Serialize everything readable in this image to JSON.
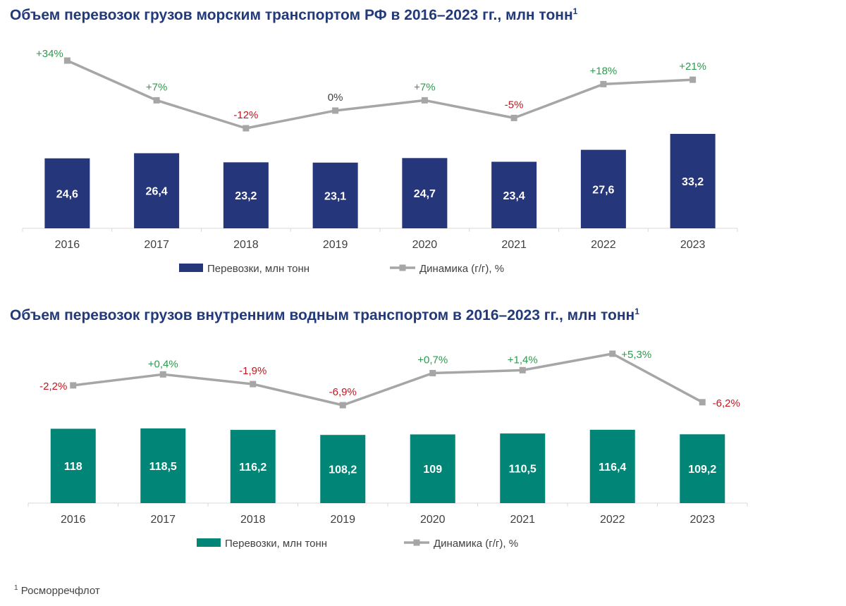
{
  "colors": {
    "title": "#22397a",
    "sea_bar": "#26367a",
    "inland_bar": "#008577",
    "line": "#a6a6a6",
    "positive": "#2e9a4e",
    "negative": "#c0161f",
    "neutral": "#404040",
    "axis_text": "#404040"
  },
  "titles": {
    "top": "Объем перевозок грузов морским транспортом РФ в 2016–2023 гг., млн тонн",
    "bottom": "Объем перевозок грузов внутренним водным транспортом в 2016–2023 гг., млн тонн",
    "footnote_mark": "1"
  },
  "footnote": {
    "mark": "1",
    "text": "Росморречфлот"
  },
  "chart_data": [
    {
      "type": "bar",
      "title": "Объем перевозок грузов морским транспортом РФ в 2016–2023 гг., млн тонн",
      "categories": [
        "2016",
        "2017",
        "2018",
        "2019",
        "2020",
        "2021",
        "2022",
        "2023"
      ],
      "bar_series": {
        "name": "Перевозки, млн тонн",
        "values": [
          24.6,
          26.4,
          23.2,
          23.1,
          24.7,
          23.4,
          27.6,
          33.2
        ],
        "labels": [
          "24,6",
          "26,4",
          "23,2",
          "23,1",
          "24,7",
          "23,4",
          "27,6",
          "33,2"
        ]
      },
      "line_series": {
        "name": "Динамика (г/г), %",
        "values": [
          34,
          7,
          -12,
          0,
          7,
          -5,
          18,
          21
        ],
        "labels": [
          "+34%",
          "+7%",
          "-12%",
          "0%",
          "+7%",
          "-5%",
          "+18%",
          "+21%"
        ]
      },
      "grid": false,
      "legend": "bottom"
    },
    {
      "type": "bar",
      "title": "Объем перевозок грузов внутренним водным транспортом в 2016–2023 гг., млн тонн",
      "categories": [
        "2016",
        "2017",
        "2018",
        "2019",
        "2020",
        "2021",
        "2022",
        "2023"
      ],
      "bar_series": {
        "name": "Перевозки, млн тонн",
        "values": [
          118,
          118.5,
          116.2,
          108.2,
          109,
          110.5,
          116.4,
          109.2
        ],
        "labels": [
          "118",
          "118,5",
          "116,2",
          "108,2",
          "109",
          "110,5",
          "116,4",
          "109,2"
        ]
      },
      "line_series": {
        "name": "Динамика (г/г), %",
        "values": [
          -2.2,
          0.4,
          -1.9,
          -6.9,
          0.7,
          1.4,
          5.3,
          -6.2
        ],
        "labels": [
          "-2,2%",
          "+0,4%",
          "-1,9%",
          "-6,9%",
          "+0,7%",
          "+1,4%",
          "+5,3%",
          "-6,2%"
        ]
      },
      "grid": false,
      "legend": "bottom"
    }
  ]
}
